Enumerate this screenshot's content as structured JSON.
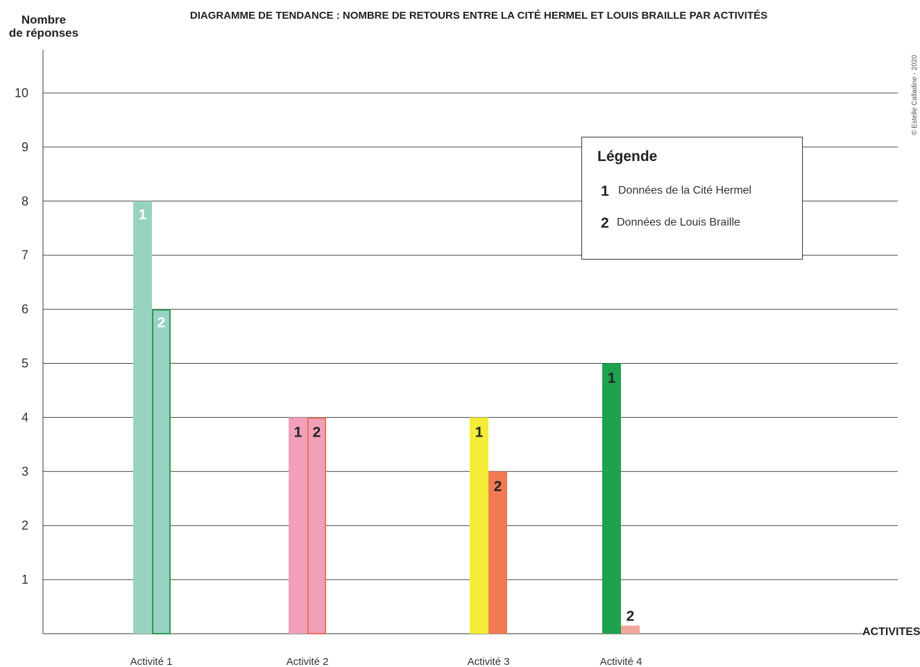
{
  "chart_data": {
    "type": "bar",
    "title": "DIAGRAMME DE TENDANCE : NOMBRE DE RETOURS ENTRE LA CITÉ HERMEL ET LOUIS BRAILLE PAR ACTIVITÉS",
    "ylabel": [
      "Nombre",
      "de réponses"
    ],
    "xlabel": "ACTIVITES",
    "ylim": [
      0,
      10
    ],
    "yticks": [
      1,
      2,
      3,
      4,
      5,
      6,
      7,
      8,
      9,
      10
    ],
    "grid": true,
    "categories": [
      "Activité 1",
      "Activité 2",
      "Activité 3",
      "Activité 4"
    ],
    "series": [
      {
        "name": "Données de la Cité Hermel",
        "marker": "1",
        "values": [
          8,
          4,
          4,
          5
        ]
      },
      {
        "name": "Données de Louis Braille",
        "marker": "2",
        "values": [
          6,
          4,
          3,
          0.15
        ]
      }
    ],
    "bar_colors": [
      [
        "#98d2c1",
        "#98d2c1"
      ],
      [
        "#f29fb9",
        "#f29fb9"
      ],
      [
        "#f4ec36",
        "#f07a52"
      ],
      [
        "#1ea24f",
        "#f3a69a"
      ]
    ],
    "bar_borders": [
      [
        null,
        "#2f9a55"
      ],
      [
        null,
        "#e8725a"
      ],
      [
        null,
        null
      ],
      [
        null,
        null
      ]
    ],
    "label_colors": [
      [
        "#ffffff",
        "#ffffff"
      ],
      [
        "#222222",
        "#222222"
      ],
      [
        "#222222",
        "#222222"
      ],
      [
        "#222222",
        "#222222"
      ]
    ],
    "legend": {
      "title": "Légende",
      "placement": "top-right",
      "items": [
        {
          "marker": "1",
          "label": "Données de la Cité Hermel"
        },
        {
          "marker": "2",
          "label": "Données de Louis Braille"
        }
      ]
    },
    "credit": "© Estelle Calladine - 2020"
  }
}
